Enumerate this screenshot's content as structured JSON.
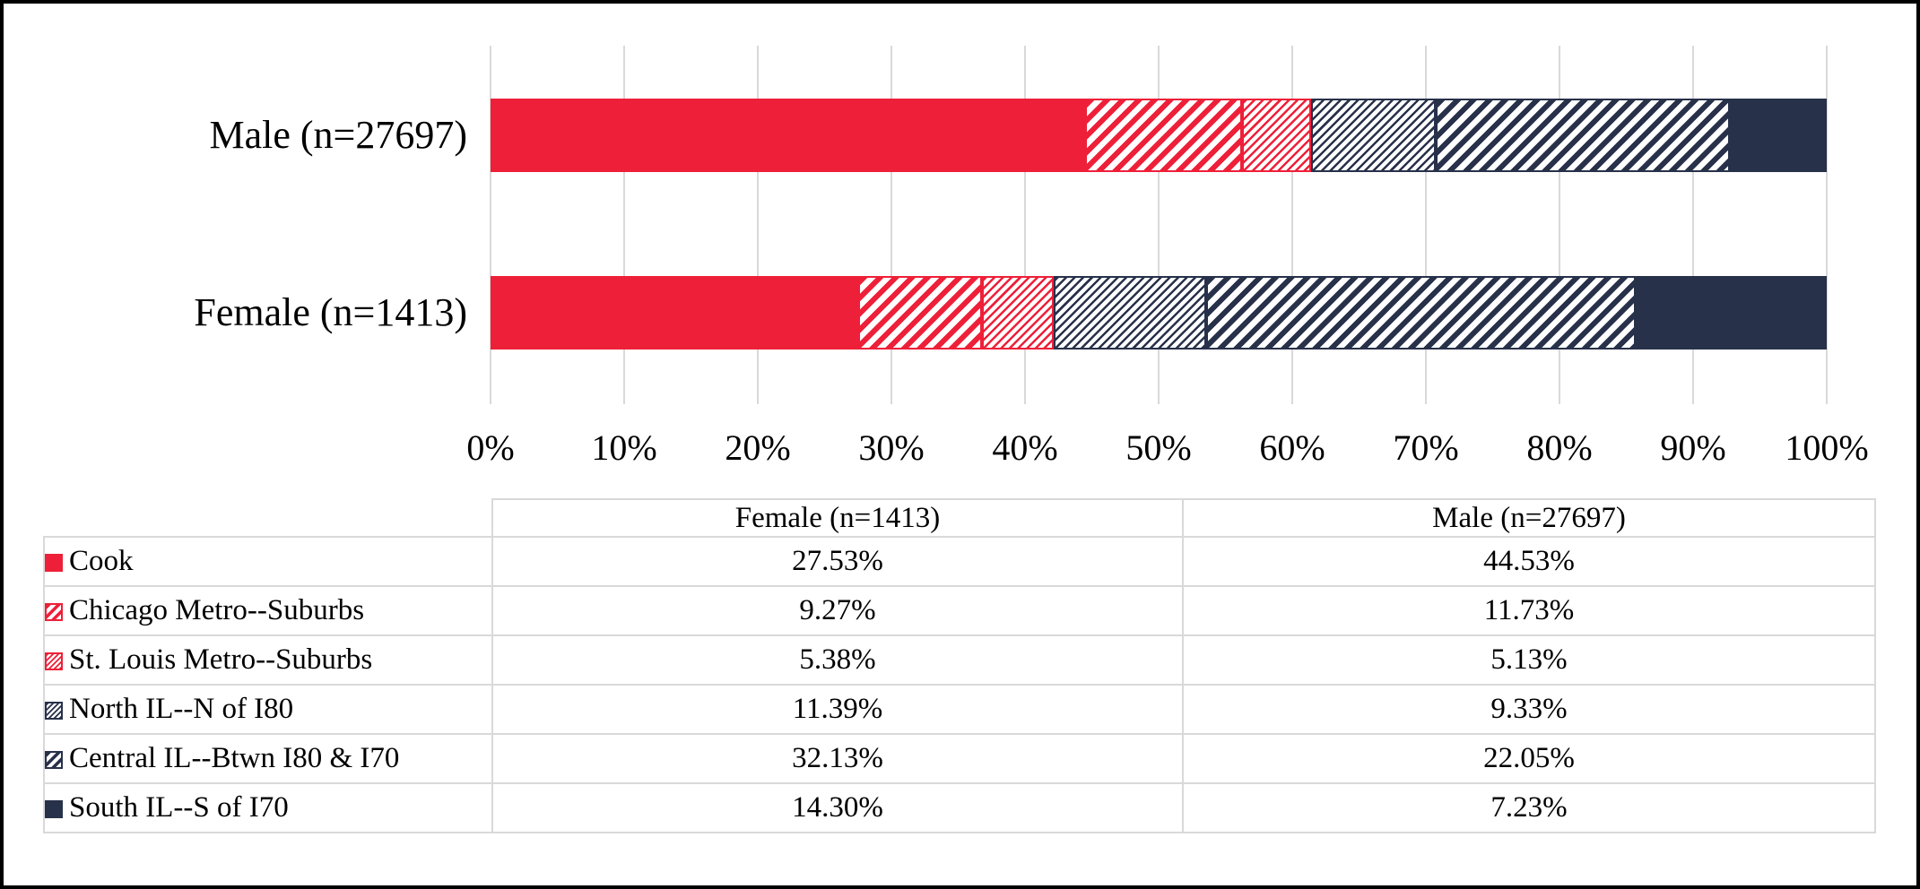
{
  "chart_data": {
    "type": "bar",
    "orientation": "horizontal",
    "stacked": true,
    "grid": true,
    "legend_position": "table-left-column",
    "categories": [
      "Male (n=27697)",
      "Female (n=1413)"
    ],
    "x_axis": {
      "min": 0,
      "max": 100,
      "ticks": [
        "0%",
        "10%",
        "20%",
        "30%",
        "40%",
        "50%",
        "60%",
        "70%",
        "80%",
        "90%",
        "100%"
      ]
    },
    "series": [
      {
        "id": "cook",
        "name": "Cook",
        "pattern": "solid",
        "color": "#EE2039",
        "values": {
          "male": 44.53,
          "female": 27.53
        }
      },
      {
        "id": "chicago-metro-suburbs",
        "name": "Chicago Metro--Suburbs",
        "pattern": "stripe",
        "color": "#EE2039",
        "values": {
          "male": 11.73,
          "female": 9.27
        }
      },
      {
        "id": "st-louis-metro-suburbs",
        "name": "St. Louis Metro--Suburbs",
        "pattern": "hatch",
        "color": "#EE2039",
        "values": {
          "male": 5.13,
          "female": 5.38
        }
      },
      {
        "id": "north-il-n-of-i80",
        "name": "North IL--N of I80",
        "pattern": "hatch",
        "color": "#28314A",
        "values": {
          "male": 9.33,
          "female": 11.39
        }
      },
      {
        "id": "central-il-btwn-i80-i70",
        "name": "Central IL--Btwn I80 & I70",
        "pattern": "stripe",
        "color": "#28314A",
        "values": {
          "male": 22.05,
          "female": 32.13
        }
      },
      {
        "id": "south-il-s-of-i70",
        "name": "South IL--S of I70",
        "pattern": "solid",
        "color": "#28314A",
        "values": {
          "male": 7.23,
          "female": 14.3
        }
      }
    ]
  },
  "table": {
    "col_headers": [
      "Female (n=1413)",
      "Male (n=27697)"
    ],
    "rows": [
      {
        "label": "Cook",
        "female": "27.53%",
        "male": "44.53%"
      },
      {
        "label": "Chicago Metro--Suburbs",
        "female": "9.27%",
        "male": "11.73%"
      },
      {
        "label": "St. Louis Metro--Suburbs",
        "female": "5.38%",
        "male": "5.13%"
      },
      {
        "label": "North IL--N of I80",
        "female": "11.39%",
        "male": "9.33%"
      },
      {
        "label": "Central IL--Btwn I80 & I70",
        "female": "32.13%",
        "male": "22.05%"
      },
      {
        "label": "South IL--S of I70",
        "female": "14.30%",
        "male": "7.23%"
      }
    ]
  },
  "colors": {
    "red": "#EE2039",
    "navy": "#28314A",
    "gridline": "#D9D9D9",
    "table_border": "#D9D9D9",
    "text": "#000000",
    "background": "#FFFFFF",
    "frame_border": "#000000"
  }
}
